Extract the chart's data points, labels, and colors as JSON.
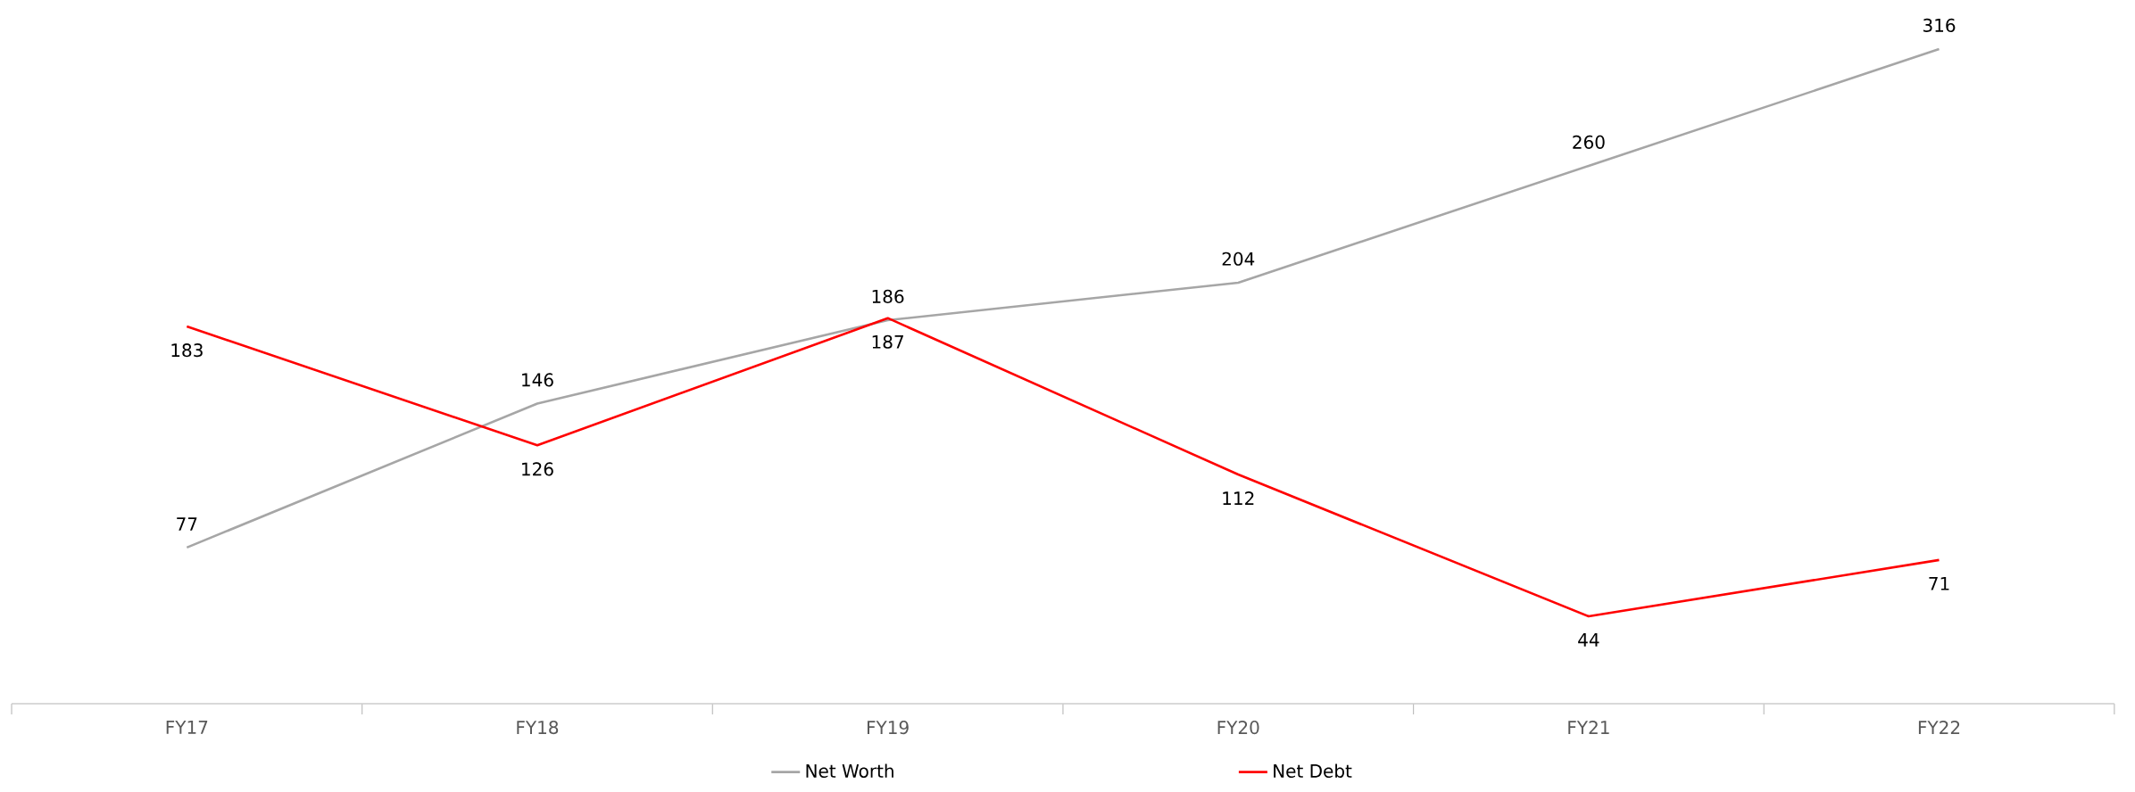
{
  "chart_data": {
    "type": "line",
    "categories": [
      "FY17",
      "FY18",
      "FY19",
      "FY20",
      "FY21",
      "FY22"
    ],
    "series": [
      {
        "name": "Net Worth",
        "color": "#a6a6a6",
        "values": [
          77,
          146,
          186,
          204,
          260,
          316
        ]
      },
      {
        "name": "Net Debt",
        "color": "#ff0000",
        "values": [
          183,
          126,
          187,
          112,
          44,
          71
        ]
      }
    ],
    "data_labels": true,
    "legend": "bottom",
    "marker": "none",
    "line_style": "solid"
  }
}
